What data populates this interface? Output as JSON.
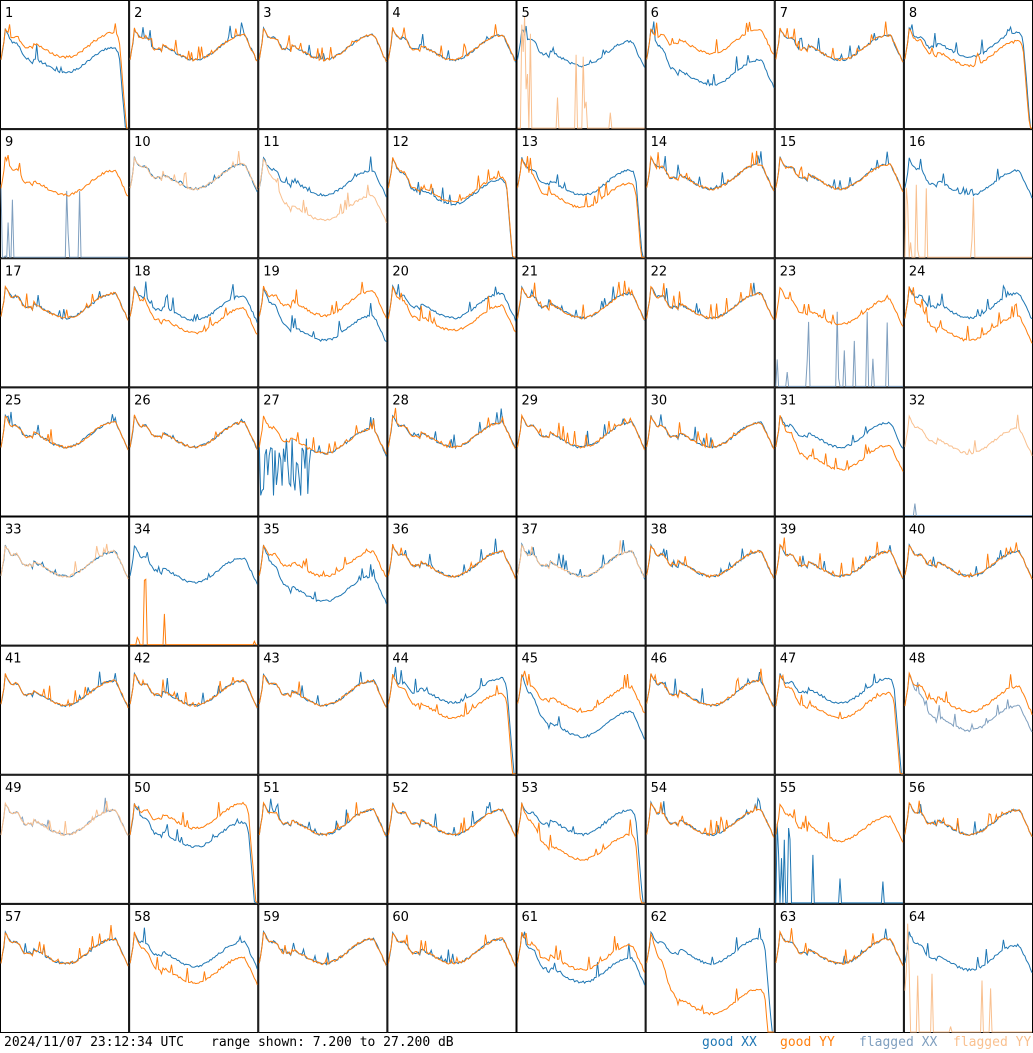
{
  "footer": {
    "timestamp": "2024/11/07 23:12:34 UTC",
    "range_text": "range shown: 7.200 to 27.200 dB"
  },
  "legend": [
    {
      "key": "good_xx",
      "label": "good XX",
      "color": "#1f77b4"
    },
    {
      "key": "good_yy",
      "label": "good YY",
      "color": "#ff7f0e"
    },
    {
      "key": "flagged_xx",
      "label": "flagged XX",
      "color": "#7f9fbf"
    },
    {
      "key": "flagged_yy",
      "label": "flagged YY",
      "color": "#f9c08f"
    }
  ],
  "chart_data": {
    "type": "line",
    "layout": "8x8 grid of small multiples",
    "ylim": [
      7.2,
      27.2
    ],
    "yunit": "dB",
    "tiles": [
      {
        "n": 1,
        "xx": "good",
        "yy": "good",
        "shape": "dropout",
        "xxBase": 0.5,
        "yyBase": 0.62
      },
      {
        "n": 2,
        "xx": "good",
        "yy": "good",
        "shape": "typical"
      },
      {
        "n": 3,
        "xx": "good",
        "yy": "good",
        "shape": "typical"
      },
      {
        "n": 4,
        "xx": "good",
        "yy": "good",
        "shape": "typical"
      },
      {
        "n": 5,
        "xx": "good",
        "yy": "flagged",
        "shape": "xx_only_spikes"
      },
      {
        "n": 6,
        "xx": "good",
        "yy": "good",
        "shape": "split",
        "xxBase": 0.4,
        "yyBase": 0.65
      },
      {
        "n": 7,
        "xx": "good",
        "yy": "good",
        "shape": "typical"
      },
      {
        "n": 8,
        "xx": "good",
        "yy": "good",
        "shape": "dropout",
        "xxBase": 0.62,
        "yyBase": 0.55
      },
      {
        "n": 9,
        "xx": "flagged",
        "yy": "good",
        "shape": "yy_only_spikes"
      },
      {
        "n": 10,
        "xx": "good",
        "yy": "flagged",
        "shape": "typical"
      },
      {
        "n": 11,
        "xx": "good",
        "yy": "flagged",
        "shape": "split",
        "xxBase": 0.55,
        "yyBase": 0.35
      },
      {
        "n": 12,
        "xx": "good",
        "yy": "good",
        "shape": "dropout",
        "xxBase": 0.48,
        "yyBase": 0.5
      },
      {
        "n": 13,
        "xx": "good",
        "yy": "good",
        "shape": "dropout",
        "xxBase": 0.55,
        "yyBase": 0.45
      },
      {
        "n": 14,
        "xx": "good",
        "yy": "good",
        "shape": "typical"
      },
      {
        "n": 15,
        "xx": "good",
        "yy": "good",
        "shape": "typical"
      },
      {
        "n": 16,
        "xx": "good",
        "yy": "flagged",
        "shape": "xx_only_spikes"
      },
      {
        "n": 17,
        "xx": "good",
        "yy": "good",
        "shape": "typical"
      },
      {
        "n": 18,
        "xx": "good",
        "yy": "good",
        "shape": "split",
        "xxBase": 0.58,
        "yyBase": 0.48
      },
      {
        "n": 19,
        "xx": "good",
        "yy": "good",
        "shape": "split",
        "xxBase": 0.42,
        "yyBase": 0.62
      },
      {
        "n": 20,
        "xx": "good",
        "yy": "good",
        "shape": "split",
        "xxBase": 0.6,
        "yyBase": 0.5
      },
      {
        "n": 21,
        "xx": "good",
        "yy": "good",
        "shape": "typical"
      },
      {
        "n": 22,
        "xx": "good",
        "yy": "good",
        "shape": "typical"
      },
      {
        "n": 23,
        "xx": "flagged",
        "yy": "good",
        "shape": "yy_only_spikes"
      },
      {
        "n": 24,
        "xx": "good",
        "yy": "good",
        "shape": "split",
        "xxBase": 0.6,
        "yyBase": 0.42
      },
      {
        "n": 25,
        "xx": "good",
        "yy": "good",
        "shape": "typical"
      },
      {
        "n": 26,
        "xx": "good",
        "yy": "good",
        "shape": "typical"
      },
      {
        "n": 27,
        "xx": "good",
        "yy": "good",
        "shape": "erratic"
      },
      {
        "n": 28,
        "xx": "good",
        "yy": "good",
        "shape": "typical"
      },
      {
        "n": 29,
        "xx": "good",
        "yy": "good",
        "shape": "typical"
      },
      {
        "n": 30,
        "xx": "good",
        "yy": "good",
        "shape": "typical"
      },
      {
        "n": 31,
        "xx": "good",
        "yy": "good",
        "shape": "split",
        "xxBase": 0.6,
        "yyBase": 0.42
      },
      {
        "n": 32,
        "xx": "flagged",
        "yy": "flagged",
        "shape": "flagged_only"
      },
      {
        "n": 33,
        "xx": "good",
        "yy": "flagged",
        "shape": "typical"
      },
      {
        "n": 34,
        "xx": "good",
        "yy": "good",
        "shape": "xx_with_yy_spikes"
      },
      {
        "n": 35,
        "xx": "good",
        "yy": "good",
        "shape": "split",
        "xxBase": 0.4,
        "yyBase": 0.6
      },
      {
        "n": 36,
        "xx": "good",
        "yy": "good",
        "shape": "typical"
      },
      {
        "n": 37,
        "xx": "good",
        "yy": "flagged",
        "shape": "typical"
      },
      {
        "n": 38,
        "xx": "good",
        "yy": "good",
        "shape": "typical"
      },
      {
        "n": 39,
        "xx": "good",
        "yy": "good",
        "shape": "typical"
      },
      {
        "n": 40,
        "xx": "good",
        "yy": "good",
        "shape": "typical"
      },
      {
        "n": 41,
        "xx": "good",
        "yy": "good",
        "shape": "typical"
      },
      {
        "n": 42,
        "xx": "good",
        "yy": "good",
        "shape": "typical"
      },
      {
        "n": 43,
        "xx": "good",
        "yy": "good",
        "shape": "typical"
      },
      {
        "n": 44,
        "xx": "good",
        "yy": "good",
        "shape": "dropout",
        "xxBase": 0.62,
        "yyBase": 0.5
      },
      {
        "n": 45,
        "xx": "good",
        "yy": "good",
        "shape": "split",
        "xxBase": 0.35,
        "yyBase": 0.55
      },
      {
        "n": 46,
        "xx": "good",
        "yy": "good",
        "shape": "typical"
      },
      {
        "n": 47,
        "xx": "good",
        "yy": "good",
        "shape": "dropout",
        "xxBase": 0.62,
        "yyBase": 0.5
      },
      {
        "n": 48,
        "xx": "flagged",
        "yy": "good",
        "shape": "split",
        "xxBase": 0.4,
        "yyBase": 0.55
      },
      {
        "n": 49,
        "xx": "flagged",
        "yy": "flagged",
        "shape": "typical"
      },
      {
        "n": 50,
        "xx": "good",
        "yy": "good",
        "shape": "dropout",
        "xxBase": 0.5,
        "yyBase": 0.65
      },
      {
        "n": 51,
        "xx": "good",
        "yy": "good",
        "shape": "typical"
      },
      {
        "n": 52,
        "xx": "good",
        "yy": "good",
        "shape": "typical"
      },
      {
        "n": 53,
        "xx": "good",
        "yy": "good",
        "shape": "dropout",
        "xxBase": 0.6,
        "yyBase": 0.4
      },
      {
        "n": 54,
        "xx": "good",
        "yy": "good",
        "shape": "typical"
      },
      {
        "n": 55,
        "xx": "good",
        "yy": "good",
        "shape": "yy_only_spikes"
      },
      {
        "n": 56,
        "xx": "good",
        "yy": "good",
        "shape": "typical"
      },
      {
        "n": 57,
        "xx": "good",
        "yy": "good",
        "shape": "typical"
      },
      {
        "n": 58,
        "xx": "good",
        "yy": "good",
        "shape": "split",
        "xxBase": 0.58,
        "yyBase": 0.45
      },
      {
        "n": 59,
        "xx": "good",
        "yy": "good",
        "shape": "typical"
      },
      {
        "n": 60,
        "xx": "good",
        "yy": "good",
        "shape": "typical"
      },
      {
        "n": 61,
        "xx": "good",
        "yy": "good",
        "shape": "split",
        "xxBase": 0.45,
        "yyBase": 0.55
      },
      {
        "n": 62,
        "xx": "good",
        "yy": "good",
        "shape": "dropout",
        "xxBase": 0.6,
        "yyBase": 0.2
      },
      {
        "n": 63,
        "xx": "good",
        "yy": "good",
        "shape": "typical"
      },
      {
        "n": 64,
        "xx": "good",
        "yy": "flagged",
        "shape": "xx_only_spikes"
      }
    ]
  }
}
